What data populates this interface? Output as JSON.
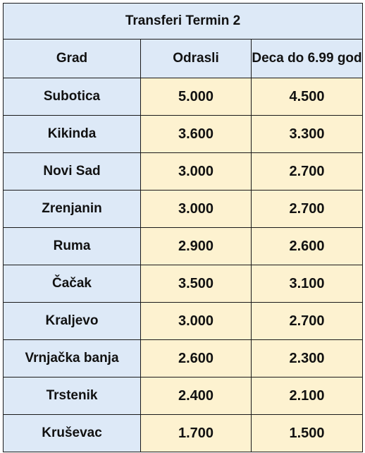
{
  "table": {
    "title": "Transferi Termin 2",
    "headers": [
      "Grad",
      "Odrasli",
      "Deca do 6.99 god"
    ],
    "rows": [
      {
        "city": "Subotica",
        "adults": "5.000",
        "children": "4.500"
      },
      {
        "city": "Kikinda",
        "adults": "3.600",
        "children": "3.300"
      },
      {
        "city": "Novi Sad",
        "adults": "3.000",
        "children": "2.700"
      },
      {
        "city": "Zrenjanin",
        "adults": "3.000",
        "children": "2.700"
      },
      {
        "city": "Ruma",
        "adults": "2.900",
        "children": "2.600"
      },
      {
        "city": "Čačak",
        "adults": "3.500",
        "children": "3.100"
      },
      {
        "city": "Kraljevo",
        "adults": "3.000",
        "children": "2.700"
      },
      {
        "city": "Vrnjačka banja",
        "adults": "2.600",
        "children": "2.300"
      },
      {
        "city": "Trstenik",
        "adults": "2.400",
        "children": "2.100"
      },
      {
        "city": "Kruševac",
        "adults": "1.700",
        "children": "1.500"
      }
    ]
  },
  "colors": {
    "header_bg": "#dde9f7",
    "price_bg": "#fdf2d0",
    "border": "#1a1a1a"
  }
}
